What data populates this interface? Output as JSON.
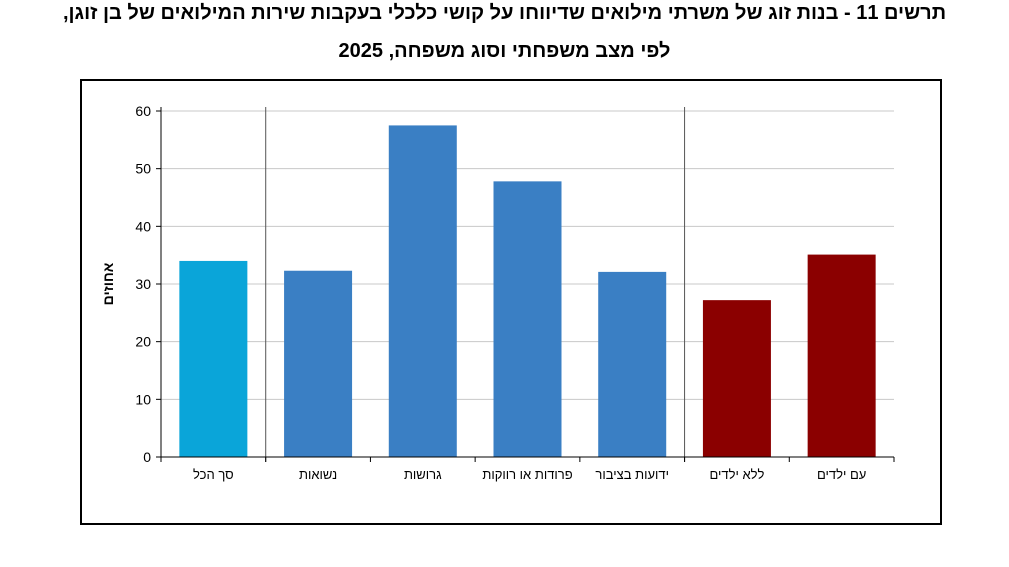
{
  "header": {
    "title_line1": "תרשים 11 - בנות זוג של משרתי מילואים שדיווחו על קושי כלכלי בעקבות שירות המילואים של בן זוגן,",
    "title_line2": "לפי מצב משפחתי וסוג משפחה, 2025"
  },
  "chart_data": {
    "type": "bar",
    "title": "תרשים 11 - בנות זוג של משרתי מילואים שדיווחו על קושי כלכלי בעקבות שירות המילואים של בן זוגן, לפי מצב משפחתי וסוג משפחה, 2025",
    "ylabel": "אחוזים",
    "xlabel": "",
    "ylim": [
      0,
      60
    ],
    "yticks": [
      0,
      10,
      20,
      30,
      40,
      50,
      60
    ],
    "grid": true,
    "categories": [
      "סך הכל",
      "נשואות",
      "גרושות",
      "פרודות או רווקות",
      "ידועות בציבור",
      "ללא ילדים",
      "עם ילדים"
    ],
    "values": [
      34,
      32.3,
      57.5,
      47.8,
      32.1,
      27.2,
      35.1
    ],
    "colors": [
      "#0aa5d9",
      "#3a7fc4",
      "#3a7fc4",
      "#3a7fc4",
      "#3a7fc4",
      "#8b0000",
      "#8b0000"
    ],
    "group_separators_after": [
      0,
      4
    ]
  }
}
